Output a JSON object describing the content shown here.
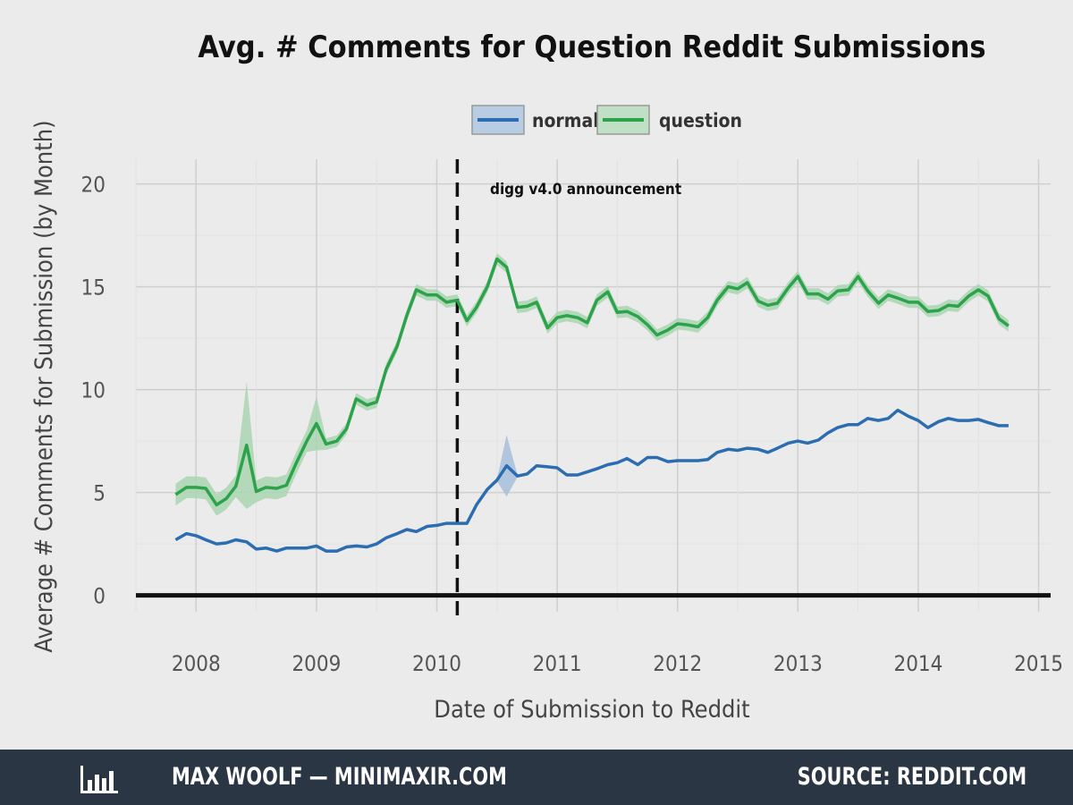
{
  "chart_data": {
    "type": "line",
    "title": "Avg. # Comments for Question Reddit Submissions",
    "xlabel": "Date of Submission to Reddit",
    "ylabel": "Average # Comments for Submission (by Month)",
    "xlim": [
      2007.5,
      2015.1
    ],
    "ylim": [
      -0.8,
      21.2
    ],
    "x_ticks": [
      2008,
      2009,
      2010,
      2011,
      2012,
      2013,
      2014,
      2015
    ],
    "y_ticks": [
      0,
      5,
      10,
      15,
      20
    ],
    "grid": true,
    "legend_position": "top",
    "annotation": {
      "x": 2010.17,
      "label": "digg v4.0 announcement"
    },
    "series": [
      {
        "name": "normal",
        "color": "#2b6db0",
        "points": [
          [
            2007.83,
            2.7
          ],
          [
            2007.92,
            3.0
          ],
          [
            2008.0,
            2.9
          ],
          [
            2008.08,
            2.7
          ],
          [
            2008.17,
            2.5
          ],
          [
            2008.25,
            2.55
          ],
          [
            2008.33,
            2.7
          ],
          [
            2008.42,
            2.6
          ],
          [
            2008.5,
            2.25
          ],
          [
            2008.58,
            2.3
          ],
          [
            2008.67,
            2.15
          ],
          [
            2008.75,
            2.3
          ],
          [
            2008.83,
            2.3
          ],
          [
            2008.92,
            2.3
          ],
          [
            2009.0,
            2.4
          ],
          [
            2009.08,
            2.15
          ],
          [
            2009.17,
            2.15
          ],
          [
            2009.25,
            2.35
          ],
          [
            2009.33,
            2.4
          ],
          [
            2009.42,
            2.35
          ],
          [
            2009.5,
            2.5
          ],
          [
            2009.58,
            2.8
          ],
          [
            2009.67,
            3.0
          ],
          [
            2009.75,
            3.2
          ],
          [
            2009.83,
            3.1
          ],
          [
            2009.92,
            3.35
          ],
          [
            2010.0,
            3.4
          ],
          [
            2010.08,
            3.5
          ],
          [
            2010.17,
            3.5
          ],
          [
            2010.25,
            3.5
          ],
          [
            2010.33,
            4.4
          ],
          [
            2010.42,
            5.15
          ],
          [
            2010.5,
            5.6
          ],
          [
            2010.58,
            6.3
          ],
          [
            2010.67,
            5.8
          ],
          [
            2010.75,
            5.9
          ],
          [
            2010.83,
            6.3
          ],
          [
            2010.92,
            6.25
          ],
          [
            2011.0,
            6.2
          ],
          [
            2011.08,
            5.85
          ],
          [
            2011.17,
            5.85
          ],
          [
            2011.25,
            6.0
          ],
          [
            2011.33,
            6.15
          ],
          [
            2011.42,
            6.35
          ],
          [
            2011.5,
            6.45
          ],
          [
            2011.58,
            6.65
          ],
          [
            2011.67,
            6.35
          ],
          [
            2011.75,
            6.7
          ],
          [
            2011.83,
            6.7
          ],
          [
            2011.92,
            6.5
          ],
          [
            2012.0,
            6.55
          ],
          [
            2012.08,
            6.55
          ],
          [
            2012.17,
            6.55
          ],
          [
            2012.25,
            6.6
          ],
          [
            2012.33,
            6.95
          ],
          [
            2012.42,
            7.1
          ],
          [
            2012.5,
            7.05
          ],
          [
            2012.58,
            7.15
          ],
          [
            2012.67,
            7.1
          ],
          [
            2012.75,
            6.95
          ],
          [
            2012.83,
            7.15
          ],
          [
            2012.92,
            7.4
          ],
          [
            2013.0,
            7.5
          ],
          [
            2013.08,
            7.4
          ],
          [
            2013.17,
            7.55
          ],
          [
            2013.25,
            7.9
          ],
          [
            2013.33,
            8.15
          ],
          [
            2013.42,
            8.3
          ],
          [
            2013.5,
            8.3
          ],
          [
            2013.58,
            8.6
          ],
          [
            2013.67,
            8.5
          ],
          [
            2013.75,
            8.6
          ],
          [
            2013.83,
            9.0
          ],
          [
            2013.92,
            8.7
          ],
          [
            2014.0,
            8.5
          ],
          [
            2014.08,
            8.15
          ],
          [
            2014.17,
            8.45
          ],
          [
            2014.25,
            8.6
          ],
          [
            2014.33,
            8.5
          ],
          [
            2014.42,
            8.5
          ],
          [
            2014.5,
            8.55
          ],
          [
            2014.58,
            8.4
          ],
          [
            2014.67,
            8.25
          ],
          [
            2014.75,
            8.25
          ]
        ]
      },
      {
        "name": "question",
        "color": "#2ca24a",
        "points": [
          [
            2007.83,
            4.9
          ],
          [
            2007.92,
            5.25
          ],
          [
            2008.0,
            5.25
          ],
          [
            2008.08,
            5.2
          ],
          [
            2008.17,
            4.4
          ],
          [
            2008.25,
            4.7
          ],
          [
            2008.33,
            5.3
          ],
          [
            2008.42,
            7.3
          ],
          [
            2008.5,
            5.05
          ],
          [
            2008.58,
            5.25
          ],
          [
            2008.67,
            5.2
          ],
          [
            2008.75,
            5.35
          ],
          [
            2008.83,
            6.4
          ],
          [
            2008.92,
            7.5
          ],
          [
            2009.0,
            8.35
          ],
          [
            2009.08,
            7.35
          ],
          [
            2009.17,
            7.5
          ],
          [
            2009.25,
            8.1
          ],
          [
            2009.33,
            9.55
          ],
          [
            2009.42,
            9.25
          ],
          [
            2009.5,
            9.4
          ],
          [
            2009.58,
            11.0
          ],
          [
            2009.67,
            12.1
          ],
          [
            2009.75,
            13.6
          ],
          [
            2009.83,
            14.85
          ],
          [
            2009.92,
            14.6
          ],
          [
            2010.0,
            14.6
          ],
          [
            2010.08,
            14.25
          ],
          [
            2010.17,
            14.35
          ],
          [
            2010.25,
            13.35
          ],
          [
            2010.33,
            14.0
          ],
          [
            2010.42,
            15.0
          ],
          [
            2010.5,
            16.35
          ],
          [
            2010.58,
            15.95
          ],
          [
            2010.67,
            14.0
          ],
          [
            2010.75,
            14.05
          ],
          [
            2010.83,
            14.25
          ],
          [
            2010.92,
            13.0
          ],
          [
            2011.0,
            13.5
          ],
          [
            2011.08,
            13.6
          ],
          [
            2011.17,
            13.5
          ],
          [
            2011.25,
            13.25
          ],
          [
            2011.33,
            14.35
          ],
          [
            2011.42,
            14.75
          ],
          [
            2011.5,
            13.75
          ],
          [
            2011.58,
            13.8
          ],
          [
            2011.67,
            13.55
          ],
          [
            2011.75,
            13.15
          ],
          [
            2011.83,
            12.65
          ],
          [
            2011.92,
            12.9
          ],
          [
            2012.0,
            13.2
          ],
          [
            2012.08,
            13.15
          ],
          [
            2012.17,
            13.05
          ],
          [
            2012.25,
            13.5
          ],
          [
            2012.33,
            14.35
          ],
          [
            2012.42,
            15.0
          ],
          [
            2012.5,
            14.9
          ],
          [
            2012.58,
            15.2
          ],
          [
            2012.67,
            14.3
          ],
          [
            2012.75,
            14.1
          ],
          [
            2012.83,
            14.2
          ],
          [
            2012.92,
            14.95
          ],
          [
            2013.0,
            15.5
          ],
          [
            2013.08,
            14.65
          ],
          [
            2013.17,
            14.65
          ],
          [
            2013.25,
            14.4
          ],
          [
            2013.33,
            14.8
          ],
          [
            2013.42,
            14.85
          ],
          [
            2013.5,
            15.5
          ],
          [
            2013.58,
            14.8
          ],
          [
            2013.67,
            14.2
          ],
          [
            2013.75,
            14.6
          ],
          [
            2013.83,
            14.45
          ],
          [
            2013.92,
            14.25
          ],
          [
            2014.0,
            14.25
          ],
          [
            2014.08,
            13.8
          ],
          [
            2014.17,
            13.85
          ],
          [
            2014.25,
            14.1
          ],
          [
            2014.33,
            14.05
          ],
          [
            2014.42,
            14.55
          ],
          [
            2014.5,
            14.85
          ],
          [
            2014.58,
            14.55
          ],
          [
            2014.67,
            13.45
          ],
          [
            2014.75,
            13.1
          ]
        ]
      }
    ]
  },
  "footer": {
    "left": "MAX WOOLF — MINIMAXIR.COM",
    "right": "SOURCE: REDDIT.COM",
    "logo_icon": "bar-chart-icon"
  }
}
